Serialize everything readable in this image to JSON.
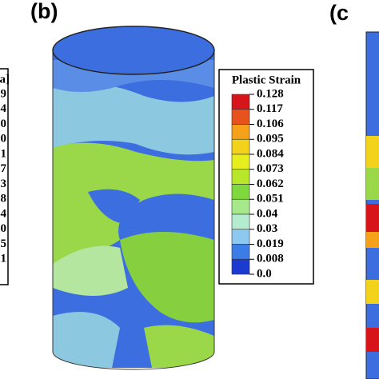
{
  "panels": {
    "b": "(b)",
    "c": "(c"
  },
  "left_legend": {
    "title": "a]",
    "labels": [
      "9",
      "4",
      "0",
      "0",
      "1",
      "7",
      "3",
      "8",
      "4",
      "0",
      "5",
      "1"
    ]
  },
  "legend": {
    "title": "Plastic Strain",
    "labels": [
      "0.128",
      "0.117",
      "0.106",
      "0.095",
      "0.084",
      "0.073",
      "0.062",
      "0.051",
      "0.04",
      "0.03",
      "0.019",
      "0.008",
      "0.0"
    ],
    "colors": [
      "#d6141a",
      "#e8521c",
      "#f5a21a",
      "#f2d21a",
      "#e6ee1e",
      "#b8e628",
      "#7fd83c",
      "#a6e88a",
      "#b4ecd0",
      "#8cc8f0",
      "#3c7ce6",
      "#1a3ad0"
    ]
  }
}
